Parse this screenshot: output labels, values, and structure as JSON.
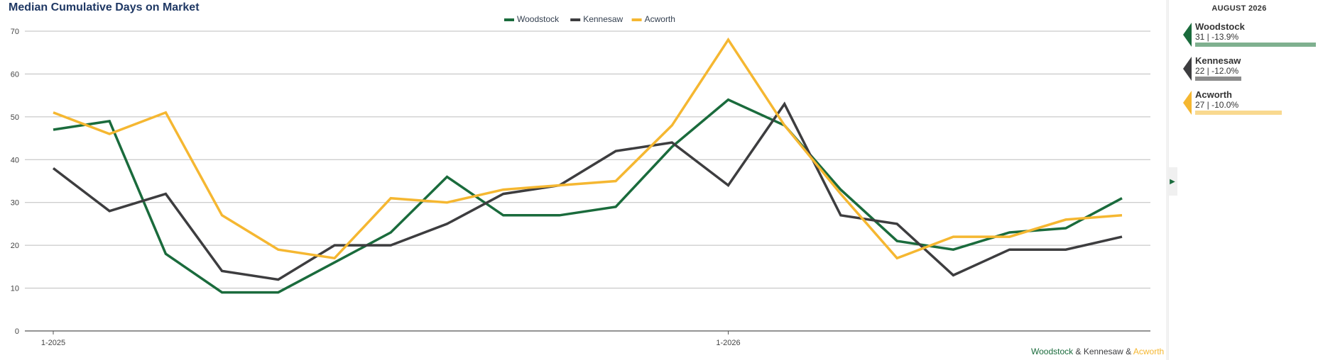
{
  "title": "Median Cumulative Days on Market",
  "legend": [
    {
      "name": "Woodstock",
      "color": "#1a6b3c"
    },
    {
      "name": "Kennesaw",
      "color": "#3d3d3f"
    },
    {
      "name": "Acworth",
      "color": "#f5b731"
    }
  ],
  "footer": {
    "part1": "Woodstock",
    "sep1": " & ",
    "part2": "Kennesaw",
    "sep2": " & ",
    "part3": "Acworth"
  },
  "panel": {
    "header": "AUGUST 2026",
    "cards": [
      {
        "name": "Woodstock",
        "stats": "31 | -13.9%",
        "color": "#1a6b3c",
        "bar_color": "#7fb08f",
        "bar_fraction": 1.0
      },
      {
        "name": "Kennesaw",
        "stats": "22 | -12.0%",
        "color": "#3d3d3f",
        "bar_color": "#8c8c8c",
        "bar_fraction": 0.38
      },
      {
        "name": "Acworth",
        "stats": "27 | -10.0%",
        "color": "#f5b731",
        "bar_color": "#f9d98f",
        "bar_fraction": 0.72
      }
    ]
  },
  "chart_data": {
    "type": "line",
    "title": "Median Cumulative Days on Market",
    "xlabel": "",
    "ylabel": "",
    "ylim": [
      0,
      70
    ],
    "yticks": [
      0,
      10,
      20,
      30,
      40,
      50,
      60,
      70
    ],
    "x": [
      "1-2025",
      "2-2025",
      "3-2025",
      "4-2025",
      "5-2025",
      "6-2025",
      "7-2025",
      "8-2025",
      "9-2025",
      "10-2025",
      "11-2025",
      "12-2025",
      "1-2026",
      "2-2026",
      "3-2026",
      "4-2026",
      "5-2026",
      "6-2026",
      "7-2026",
      "8-2026"
    ],
    "x_tick_labels": [
      {
        "index": 0,
        "label": "1-2025"
      },
      {
        "index": 12,
        "label": "1-2026"
      }
    ],
    "grid": true,
    "legend_position": "top-center",
    "series": [
      {
        "name": "Woodstock",
        "color": "#1a6b3c",
        "values": [
          47,
          49,
          18,
          9,
          9,
          16,
          23,
          36,
          27,
          27,
          29,
          43,
          54,
          48,
          33,
          21,
          19,
          23,
          24,
          31
        ]
      },
      {
        "name": "Kennesaw",
        "color": "#3d3d3f",
        "values": [
          38,
          28,
          32,
          14,
          12,
          20,
          20,
          25,
          32,
          34,
          42,
          44,
          34,
          53,
          27,
          25,
          13,
          19,
          19,
          22
        ]
      },
      {
        "name": "Acworth",
        "color": "#f5b731",
        "values": [
          51,
          46,
          51,
          27,
          19,
          17,
          31,
          30,
          33,
          34,
          35,
          48,
          68,
          48,
          32,
          17,
          22,
          22,
          26,
          27
        ]
      }
    ]
  }
}
